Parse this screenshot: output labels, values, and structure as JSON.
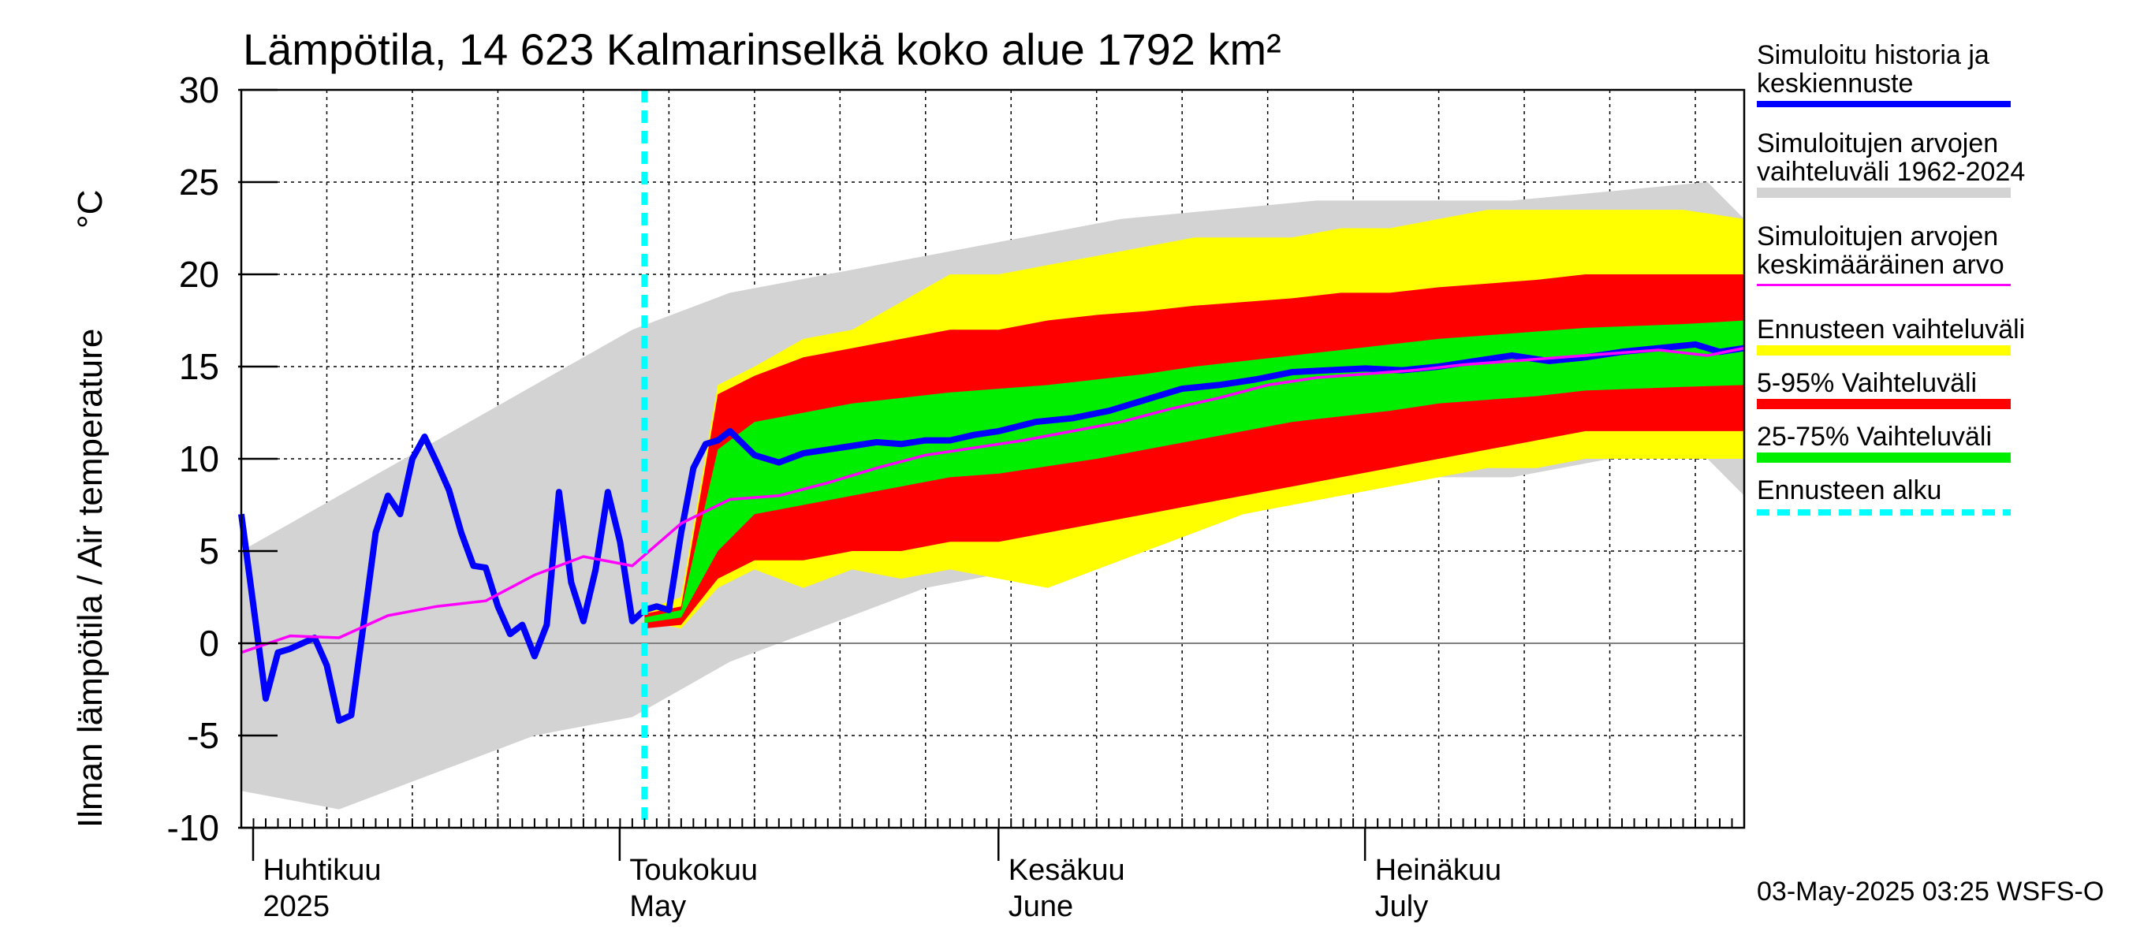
{
  "chart_data": {
    "type": "area",
    "title": "Lämpötila, 14 623 Kalmarinselkä koko alue 1792 km²",
    "ylabel": "Ilman lämpötila / Air temperature",
    "yunit": "°C",
    "ylim": [
      -10,
      30
    ],
    "yticks": [
      "30",
      "25",
      "20",
      "15",
      "10",
      "5",
      "0",
      "-5",
      "-10"
    ],
    "xlim": [
      "2025-03-31",
      "2025-08-01"
    ],
    "month_labels": [
      {
        "date": "2025-04-01",
        "fi": "Huhtikuu",
        "en": "2025"
      },
      {
        "date": "2025-05-01",
        "fi": "Toukokuu",
        "en": "May"
      },
      {
        "date": "2025-06-01",
        "fi": "Kesäkuu",
        "en": "June"
      },
      {
        "date": "2025-07-01",
        "fi": "Heinäkuu",
        "en": "July"
      }
    ],
    "forecast_start": "2025-05-03",
    "footer": "03-May-2025 03:25 WSFS-O",
    "colors": {
      "history": "#0000ff",
      "hist_range": "#d3d3d3",
      "mean": "#ff00ff",
      "forecast_range": "#ffff00",
      "p5_95": "#ff0000",
      "p25_75": "#00ee00",
      "forecast_start": "#00ffff"
    },
    "series": [
      {
        "name": "Simuloitu historia ja keskiennuste",
        "key": "history",
        "x": [
          "2025-03-31",
          "2025-04-02",
          "2025-04-03",
          "2025-04-04",
          "2025-04-06",
          "2025-04-07",
          "2025-04-08",
          "2025-04-09",
          "2025-04-10",
          "2025-04-11",
          "2025-04-12",
          "2025-04-13",
          "2025-04-14",
          "2025-04-15",
          "2025-04-16",
          "2025-04-17",
          "2025-04-18",
          "2025-04-19",
          "2025-04-20",
          "2025-04-21",
          "2025-04-22",
          "2025-04-23",
          "2025-04-24",
          "2025-04-25",
          "2025-04-26",
          "2025-04-27",
          "2025-04-28",
          "2025-04-29",
          "2025-04-30",
          "2025-05-01",
          "2025-05-02",
          "2025-05-03",
          "2025-05-04",
          "2025-05-05",
          "2025-05-06",
          "2025-05-07",
          "2025-05-08",
          "2025-05-09",
          "2025-05-10",
          "2025-05-12",
          "2025-05-14",
          "2025-05-16",
          "2025-05-18",
          "2025-05-20",
          "2025-05-22",
          "2025-05-24",
          "2025-05-26",
          "2025-05-28",
          "2025-05-30",
          "2025-06-01",
          "2025-06-04",
          "2025-06-07",
          "2025-06-10",
          "2025-06-13",
          "2025-06-16",
          "2025-06-19",
          "2025-06-22",
          "2025-06-25",
          "2025-06-28",
          "2025-07-01",
          "2025-07-04",
          "2025-07-07",
          "2025-07-10",
          "2025-07-13",
          "2025-07-16",
          "2025-07-19",
          "2025-07-22",
          "2025-07-25",
          "2025-07-28",
          "2025-07-30",
          "2025-08-01"
        ],
        "y": [
          7,
          -3,
          -0.5,
          -0.3,
          0.3,
          -1.2,
          -4.2,
          -3.9,
          1,
          6,
          8,
          7,
          10,
          11.2,
          9.8,
          8.3,
          6,
          4.2,
          4.1,
          2,
          0.5,
          1,
          -0.7,
          1,
          8.2,
          3.3,
          1.2,
          4,
          8.2,
          5.5,
          1.2,
          1.8,
          2,
          1.8,
          6,
          9.5,
          10.8,
          11,
          11.5,
          10.2,
          9.8,
          10.3,
          10.5,
          10.7,
          10.9,
          10.8,
          11,
          11,
          11.3,
          11.5,
          12,
          12.2,
          12.6,
          13.2,
          13.8,
          14,
          14.3,
          14.7,
          14.8,
          14.9,
          14.8,
          15,
          15.3,
          15.6,
          15.3,
          15.5,
          15.8,
          16,
          16.2,
          15.8,
          16
        ]
      },
      {
        "name": "Simuloitujen arvojen keskimääräinen arvo",
        "key": "mean",
        "x": [
          "2025-03-31",
          "2025-04-04",
          "2025-04-08",
          "2025-04-12",
          "2025-04-16",
          "2025-04-20",
          "2025-04-24",
          "2025-04-28",
          "2025-05-02",
          "2025-05-06",
          "2025-05-10",
          "2025-05-14",
          "2025-05-18",
          "2025-05-22",
          "2025-05-26",
          "2025-05-30",
          "2025-06-03",
          "2025-06-07",
          "2025-06-11",
          "2025-06-15",
          "2025-06-19",
          "2025-06-23",
          "2025-06-27",
          "2025-07-01",
          "2025-07-05",
          "2025-07-09",
          "2025-07-13",
          "2025-07-17",
          "2025-07-21",
          "2025-07-25",
          "2025-07-29",
          "2025-08-01"
        ],
        "y": [
          -0.5,
          0.4,
          0.3,
          1.5,
          2,
          2.3,
          3.7,
          4.7,
          4.2,
          6.5,
          7.8,
          8,
          8.7,
          9.5,
          10.2,
          10.6,
          11,
          11.5,
          12,
          12.7,
          13.3,
          14,
          14.4,
          14.6,
          14.8,
          15.1,
          15.3,
          15.5,
          15.7,
          15.9,
          15.6,
          16
        ]
      },
      {
        "name": "Simuloitujen arvojen vaihteluväli 1962-2024",
        "key": "hist_range",
        "x": [
          "2025-03-31",
          "2025-04-08",
          "2025-04-16",
          "2025-04-24",
          "2025-05-02",
          "2025-05-10",
          "2025-05-18",
          "2025-05-26",
          "2025-06-03",
          "2025-06-11",
          "2025-06-19",
          "2025-06-27",
          "2025-07-05",
          "2025-07-13",
          "2025-07-21",
          "2025-07-29",
          "2025-08-01"
        ],
        "lower": [
          -8,
          -9,
          -7,
          -5,
          -4,
          -1,
          1,
          3,
          4,
          5,
          7,
          8,
          9,
          9,
          10,
          10,
          8
        ],
        "upper": [
          5,
          8,
          11,
          14,
          17,
          19,
          20,
          21,
          22,
          23,
          23.5,
          24,
          24,
          24,
          24.5,
          25,
          23
        ]
      },
      {
        "name": "Ennusteen vaihteluväli",
        "key": "forecast_range",
        "x": [
          "2025-05-03",
          "2025-05-06",
          "2025-05-09",
          "2025-05-12",
          "2025-05-16",
          "2025-05-20",
          "2025-05-24",
          "2025-05-28",
          "2025-06-01",
          "2025-06-05",
          "2025-06-09",
          "2025-06-13",
          "2025-06-17",
          "2025-06-21",
          "2025-06-25",
          "2025-06-29",
          "2025-07-03",
          "2025-07-07",
          "2025-07-11",
          "2025-07-15",
          "2025-07-19",
          "2025-07-23",
          "2025-07-27",
          "2025-08-01"
        ],
        "lower": [
          1.2,
          0.8,
          3,
          4,
          3,
          4,
          3.5,
          4,
          3.5,
          3,
          4,
          5,
          6,
          7,
          7.5,
          8,
          8.5,
          9,
          9.5,
          9.5,
          10,
          10,
          10,
          10
        ],
        "upper": [
          1.8,
          2.5,
          14,
          15,
          16.5,
          17,
          18.5,
          20,
          20,
          20.5,
          21,
          21.5,
          22,
          22,
          22,
          22.5,
          22.5,
          23,
          23.5,
          23.5,
          23.5,
          23.5,
          23.5,
          23
        ]
      },
      {
        "name": "5-95% Vaihteluväli",
        "key": "p5_95",
        "x": [
          "2025-05-03",
          "2025-05-06",
          "2025-05-09",
          "2025-05-12",
          "2025-05-16",
          "2025-05-20",
          "2025-05-24",
          "2025-05-28",
          "2025-06-01",
          "2025-06-05",
          "2025-06-09",
          "2025-06-13",
          "2025-06-17",
          "2025-06-21",
          "2025-06-25",
          "2025-06-29",
          "2025-07-03",
          "2025-07-07",
          "2025-07-11",
          "2025-07-15",
          "2025-07-19",
          "2025-07-23",
          "2025-07-27",
          "2025-08-01"
        ],
        "lower": [
          0.8,
          1,
          3.5,
          4.5,
          4.5,
          5,
          5,
          5.5,
          5.5,
          6,
          6.5,
          7,
          7.5,
          8,
          8.5,
          9,
          9.5,
          10,
          10.5,
          11,
          11.5,
          11.5,
          11.5,
          11.5
        ],
        "upper": [
          1.6,
          2,
          13.5,
          14.5,
          15.5,
          16,
          16.5,
          17,
          17,
          17.5,
          17.8,
          18,
          18.3,
          18.5,
          18.7,
          19,
          19,
          19.3,
          19.5,
          19.7,
          20,
          20,
          20,
          20
        ]
      },
      {
        "name": "25-75% Vaihteluväli",
        "key": "p25_75",
        "x": [
          "2025-05-03",
          "2025-05-06",
          "2025-05-09",
          "2025-05-12",
          "2025-05-16",
          "2025-05-20",
          "2025-05-24",
          "2025-05-28",
          "2025-06-01",
          "2025-06-05",
          "2025-06-09",
          "2025-06-13",
          "2025-06-17",
          "2025-06-21",
          "2025-06-25",
          "2025-06-29",
          "2025-07-03",
          "2025-07-07",
          "2025-07-11",
          "2025-07-15",
          "2025-07-19",
          "2025-07-23",
          "2025-07-27",
          "2025-08-01"
        ],
        "lower": [
          1.1,
          1.4,
          5,
          7,
          7.5,
          8,
          8.5,
          9,
          9.2,
          9.6,
          10,
          10.5,
          11,
          11.5,
          12,
          12.3,
          12.6,
          13,
          13.2,
          13.4,
          13.7,
          13.8,
          13.9,
          14
        ],
        "upper": [
          1.4,
          1.8,
          10.5,
          12,
          12.5,
          13,
          13.3,
          13.6,
          13.8,
          14,
          14.3,
          14.6,
          15,
          15.3,
          15.6,
          15.9,
          16.2,
          16.5,
          16.7,
          16.9,
          17.1,
          17.2,
          17.3,
          17.5
        ]
      }
    ],
    "legend": [
      {
        "label": "Simuloitu historia ja\nkeskiennuste",
        "key": "history",
        "style": "line"
      },
      {
        "label": "Simuloitujen arvojen\nvaihteluväli 1962-2024",
        "key": "hist_range",
        "style": "band"
      },
      {
        "label": "Simuloitujen arvojen\nkeskimääräinen arvo",
        "key": "mean",
        "style": "thin"
      },
      {
        "label": "Ennusteen vaihteluväli",
        "key": "forecast_range",
        "style": "band"
      },
      {
        "label": "5-95% Vaihteluväli",
        "key": "p5_95",
        "style": "band"
      },
      {
        "label": "25-75% Vaihteluväli",
        "key": "p25_75",
        "style": "band"
      },
      {
        "label": "Ennusteen alku",
        "key": "forecast_start",
        "style": "dashed"
      }
    ]
  }
}
